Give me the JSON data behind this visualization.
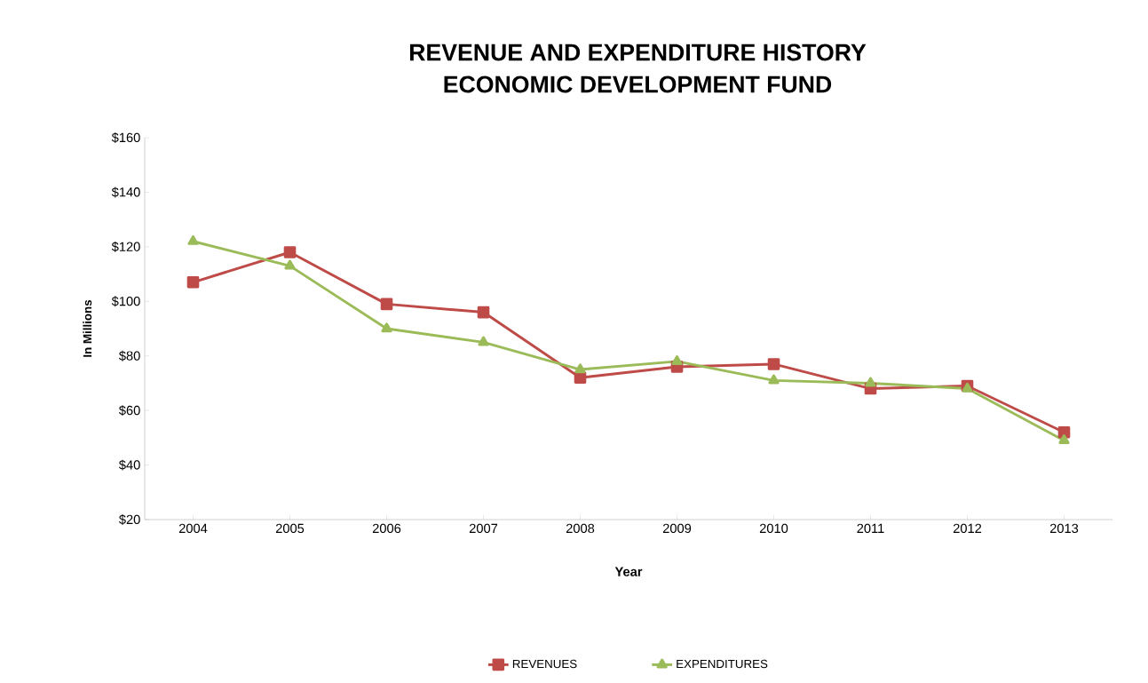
{
  "chart_data": {
    "type": "line",
    "title": "REVENUE AND EXPENDITURE HISTORY",
    "subtitle": "ECONOMIC DEVELOPMENT FUND",
    "xlabel": "Year",
    "ylabel": "In Millions",
    "categories": [
      "2004",
      "2005",
      "2006",
      "2007",
      "2008",
      "2009",
      "2010",
      "2011",
      "2012",
      "2013"
    ],
    "series": [
      {
        "name": "REVENUES",
        "color": "#be4b48",
        "marker": "square",
        "values": [
          107,
          118,
          99,
          96,
          72,
          76,
          77,
          68,
          69,
          52
        ]
      },
      {
        "name": "EXPENDITURES",
        "color": "#9bbb59",
        "marker": "triangle",
        "values": [
          122,
          113,
          90,
          85,
          75,
          78,
          71,
          70,
          68,
          49
        ]
      }
    ],
    "ylim": [
      20,
      160
    ],
    "yticks": [
      {
        "value": 20,
        "label": "$20"
      },
      {
        "value": 40,
        "label": "$40"
      },
      {
        "value": 60,
        "label": "$60"
      },
      {
        "value": 80,
        "label": "$80"
      },
      {
        "value": 100,
        "label": "$100"
      },
      {
        "value": 120,
        "label": "$120"
      },
      {
        "value": 140,
        "label": "$140"
      },
      {
        "value": 160,
        "label": "$160"
      }
    ],
    "grid": false,
    "legend": "bottom",
    "line_style": "solid"
  }
}
